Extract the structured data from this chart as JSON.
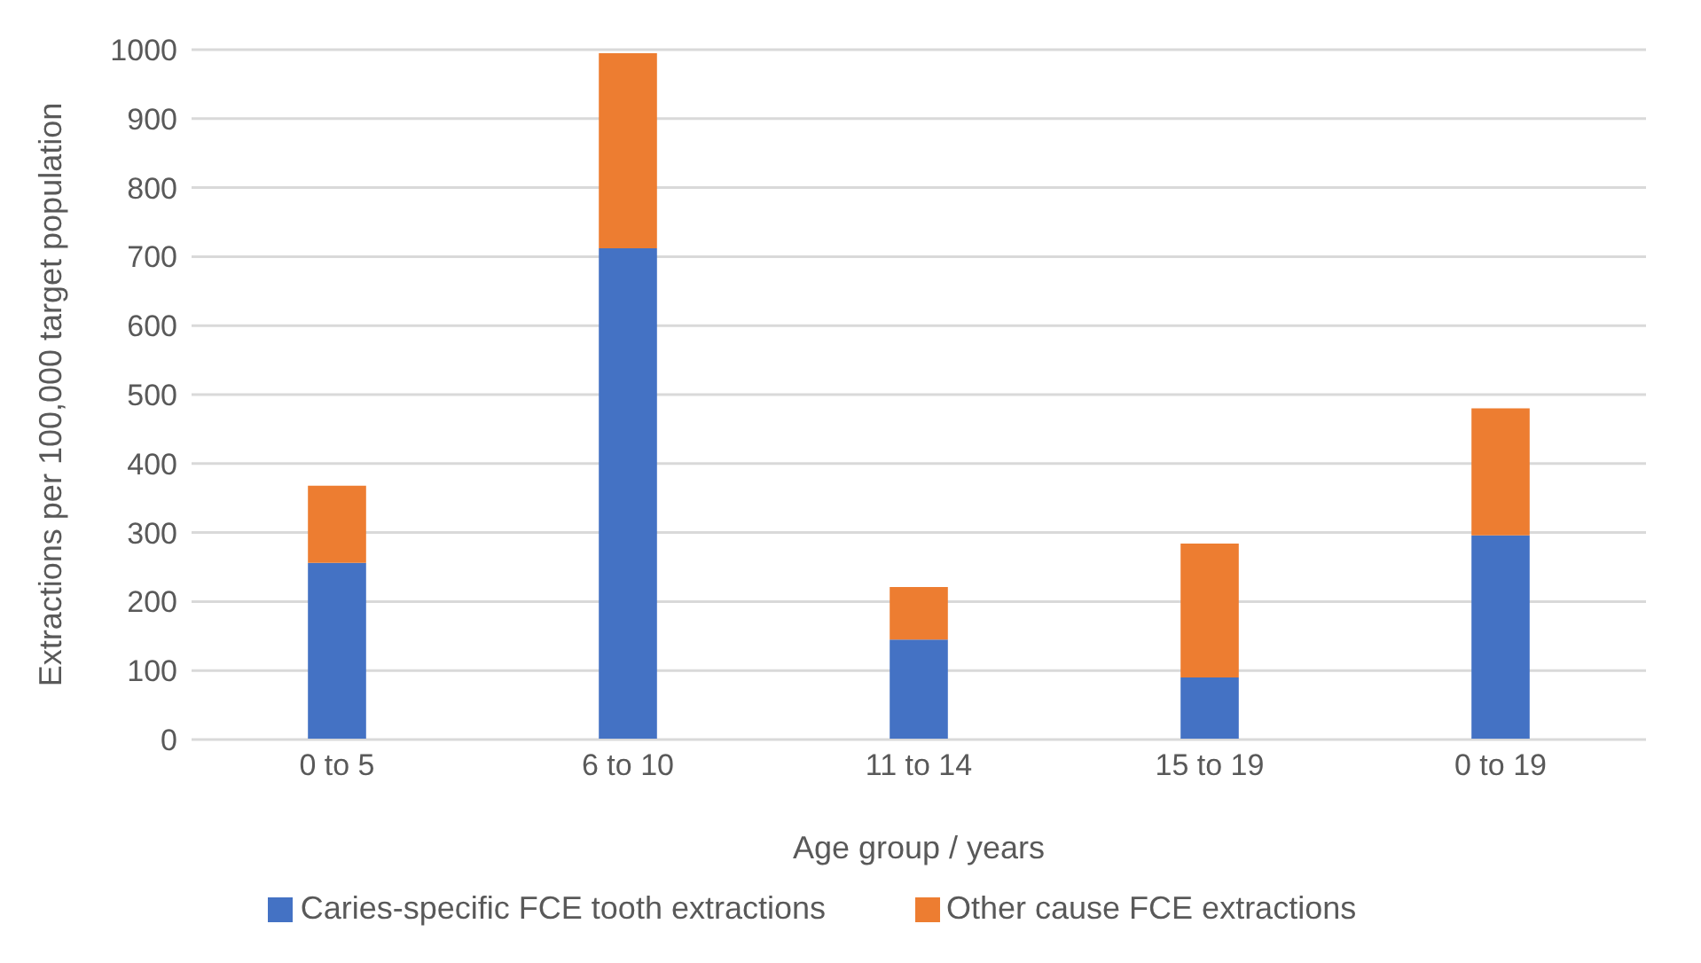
{
  "chart_data": {
    "type": "bar",
    "stacked": true,
    "xlabel": "Age group / years",
    "ylabel": "Extractions per 100,000 target population",
    "categories": [
      "0 to 5",
      "6 to 10",
      "11 to 14",
      "15 to 19",
      "0 to 19"
    ],
    "series": [
      {
        "name": "Caries-specific FCE tooth extractions",
        "color": "#4472c4",
        "values": [
          256,
          712,
          145,
          90,
          296
        ]
      },
      {
        "name": "Other cause FCE extractions",
        "color": "#ed7d31",
        "values": [
          112,
          283,
          76,
          194,
          184
        ]
      }
    ],
    "ylim": [
      0,
      1000
    ],
    "yticks": [
      0,
      100,
      200,
      300,
      400,
      500,
      600,
      700,
      800,
      900,
      1000
    ],
    "grid": "y",
    "legend": "bottom"
  }
}
